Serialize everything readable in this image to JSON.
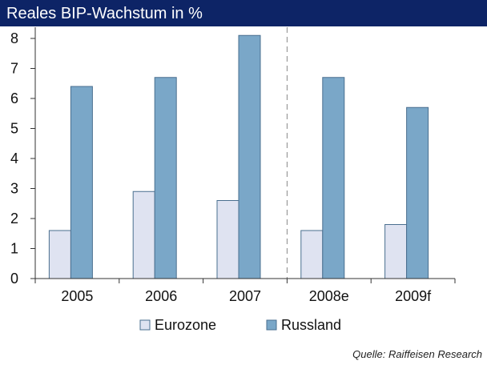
{
  "chart_data": {
    "type": "bar",
    "title": "Reales BIP-Wachstum in %",
    "categories": [
      "2005",
      "2006",
      "2007",
      "2008e",
      "2009f"
    ],
    "series": [
      {
        "name": "Eurozone",
        "values": [
          1.6,
          2.9,
          2.6,
          1.6,
          1.8
        ],
        "color": "#dfe3f1"
      },
      {
        "name": "Russland",
        "values": [
          6.4,
          6.7,
          8.1,
          6.7,
          5.7
        ],
        "color": "#7aa7c8"
      }
    ],
    "ylim": [
      0,
      8
    ],
    "yticks": [
      "0",
      "1",
      "2",
      "3",
      "4",
      "5",
      "6",
      "7",
      "8"
    ],
    "legend_position": "bottom",
    "divider_after_category": "2007",
    "source": "Quelle: Raiffeisen Research"
  }
}
